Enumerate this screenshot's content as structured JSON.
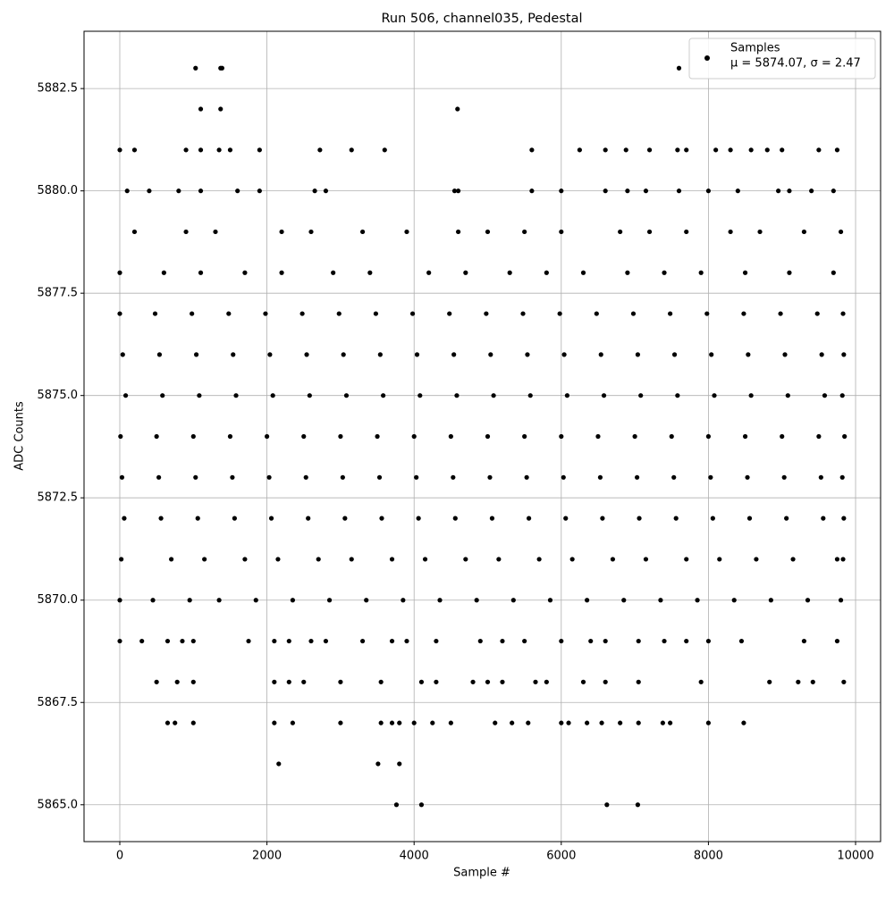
{
  "chart_data": {
    "type": "scatter",
    "title": "Run 506, channel035, Pedestal",
    "xlabel": "Sample #",
    "ylabel": "ADC Counts",
    "xlim": [
      -486,
      10340
    ],
    "ylim": [
      5864.1,
      5883.9
    ],
    "xticks": [
      0,
      2000,
      4000,
      6000,
      8000,
      10000
    ],
    "yticks": [
      {
        "value": 5865,
        "label": "5865.0"
      },
      5867.5,
      {
        "value": 5870,
        "label": "5870.0"
      },
      5872.5,
      {
        "value": 5875,
        "label": "5875.0"
      },
      5877.5,
      {
        "value": 5880,
        "label": "5880.0"
      },
      5882.5
    ],
    "grid": true,
    "legend": "upper right",
    "annotation": "μ = 5874.07, σ = 2.47",
    "series": [
      {
        "name": "Samples",
        "color": "#000000",
        "x": [
          0,
          480,
          980,
          1480,
          1980,
          2480,
          2980,
          3480,
          3980,
          4480,
          4980,
          5480,
          5980,
          6480,
          6980,
          7480,
          7980,
          8480,
          8980,
          9480,
          9830,
          40,
          540,
          1040,
          1540,
          2040,
          2540,
          3040,
          3540,
          4040,
          4540,
          5040,
          5540,
          6040,
          6540,
          7040,
          7540,
          8040,
          8540,
          9040,
          9540,
          9840,
          80,
          580,
          1080,
          1580,
          2080,
          2580,
          3080,
          3580,
          4080,
          4580,
          5080,
          5580,
          6080,
          6580,
          7080,
          7580,
          8080,
          8580,
          9080,
          9580,
          9820,
          10,
          500,
          1000,
          1500,
          2000,
          2500,
          3000,
          3500,
          4000,
          4500,
          5000,
          5500,
          6000,
          6500,
          7000,
          7500,
          8000,
          8500,
          9000,
          9500,
          9850,
          30,
          530,
          1030,
          1530,
          2030,
          2530,
          3030,
          3530,
          4030,
          4530,
          5030,
          5530,
          6030,
          6530,
          7030,
          7530,
          8030,
          8530,
          9030,
          9530,
          9820,
          60,
          560,
          1060,
          1560,
          2060,
          2560,
          3060,
          3560,
          4060,
          4560,
          5060,
          5560,
          6060,
          6560,
          7060,
          7560,
          8060,
          8560,
          9060,
          9560,
          9840,
          20,
          700,
          1150,
          1700,
          2150,
          2700,
          3150,
          3700,
          4150,
          4700,
          5150,
          5700,
          6150,
          6700,
          7150,
          7700,
          8150,
          8650,
          9150,
          9750,
          9830,
          0,
          450,
          950,
          1350,
          1850,
          2350,
          2850,
          3350,
          3850,
          4350,
          4850,
          5350,
          5850,
          6350,
          6850,
          7350,
          7850,
          8350,
          8850,
          9350,
          9800,
          0,
          600,
          1100,
          1700,
          2200,
          2900,
          3400,
          4200,
          4700,
          5300,
          5800,
          6300,
          6900,
          7400,
          7900,
          8500,
          9100,
          9700,
          200,
          900,
          1300,
          2200,
          2600,
          3300,
          3900,
          4600,
          5000,
          5500,
          6000,
          6800,
          7200,
          7700,
          8300,
          8700,
          9300,
          9800,
          100,
          400,
          800,
          1100,
          1600,
          1900,
          2650,
          2800,
          4550,
          4600,
          5600,
          6000,
          6600,
          6900,
          7150,
          7600,
          8000,
          8400,
          8950,
          9100,
          9400,
          9700,
          0,
          200,
          900,
          1100,
          1350,
          1500,
          1900,
          2720,
          3150,
          3600,
          5600,
          6250,
          6600,
          6880,
          7200,
          7580,
          7700,
          8100,
          8300,
          8580,
          8800,
          9000,
          9500,
          9750,
          0,
          300,
          650,
          850,
          1000,
          1750,
          2100,
          2300,
          2600,
          2800,
          3300,
          3700,
          3900,
          4300,
          4900,
          5200,
          5500,
          6000,
          6400,
          6600,
          7050,
          7400,
          7700,
          8000,
          8450,
          9300,
          9750,
          500,
          780,
          1000,
          2100,
          2300,
          2500,
          3000,
          3550,
          4100,
          4300,
          4800,
          5000,
          5200,
          5650,
          5800,
          6300,
          6600,
          7050,
          7900,
          8830,
          9220,
          9420,
          9840,
          650,
          750,
          1000,
          2100,
          2350,
          3000,
          3550,
          3700,
          3800,
          4000,
          4250,
          4500,
          5100,
          5330,
          5550,
          6000,
          6100,
          6350,
          6550,
          6800,
          7050,
          7380,
          7480,
          8000,
          8480,
          1030,
          1370,
          1390,
          7600,
          1100,
          1370,
          4590,
          2160,
          3510,
          3800,
          3760,
          4100,
          6620,
          7040
        ],
        "y": [
          5877,
          5877,
          5877,
          5877,
          5877,
          5877,
          5877,
          5877,
          5877,
          5877,
          5877,
          5877,
          5877,
          5877,
          5877,
          5877,
          5877,
          5877,
          5877,
          5877,
          5877,
          5876,
          5876,
          5876,
          5876,
          5876,
          5876,
          5876,
          5876,
          5876,
          5876,
          5876,
          5876,
          5876,
          5876,
          5876,
          5876,
          5876,
          5876,
          5876,
          5876,
          5876,
          5875,
          5875,
          5875,
          5875,
          5875,
          5875,
          5875,
          5875,
          5875,
          5875,
          5875,
          5875,
          5875,
          5875,
          5875,
          5875,
          5875,
          5875,
          5875,
          5875,
          5875,
          5874,
          5874,
          5874,
          5874,
          5874,
          5874,
          5874,
          5874,
          5874,
          5874,
          5874,
          5874,
          5874,
          5874,
          5874,
          5874,
          5874,
          5874,
          5874,
          5874,
          5874,
          5873,
          5873,
          5873,
          5873,
          5873,
          5873,
          5873,
          5873,
          5873,
          5873,
          5873,
          5873,
          5873,
          5873,
          5873,
          5873,
          5873,
          5873,
          5873,
          5873,
          5873,
          5872,
          5872,
          5872,
          5872,
          5872,
          5872,
          5872,
          5872,
          5872,
          5872,
          5872,
          5872,
          5872,
          5872,
          5872,
          5872,
          5872,
          5872,
          5872,
          5872,
          5872,
          5871,
          5871,
          5871,
          5871,
          5871,
          5871,
          5871,
          5871,
          5871,
          5871,
          5871,
          5871,
          5871,
          5871,
          5871,
          5871,
          5871,
          5871,
          5871,
          5871,
          5871,
          5870,
          5870,
          5870,
          5870,
          5870,
          5870,
          5870,
          5870,
          5870,
          5870,
          5870,
          5870,
          5870,
          5870,
          5870,
          5870,
          5870,
          5870,
          5870,
          5870,
          5870,
          5878,
          5878,
          5878,
          5878,
          5878,
          5878,
          5878,
          5878,
          5878,
          5878,
          5878,
          5878,
          5878,
          5878,
          5878,
          5878,
          5878,
          5878,
          5879,
          5879,
          5879,
          5879,
          5879,
          5879,
          5879,
          5879,
          5879,
          5879,
          5879,
          5879,
          5879,
          5879,
          5879,
          5879,
          5879,
          5879,
          5880,
          5880,
          5880,
          5880,
          5880,
          5880,
          5880,
          5880,
          5880,
          5880,
          5880,
          5880,
          5880,
          5880,
          5880,
          5880,
          5880,
          5880,
          5880,
          5880,
          5880,
          5880,
          5881,
          5881,
          5881,
          5881,
          5881,
          5881,
          5881,
          5881,
          5881,
          5881,
          5881,
          5881,
          5881,
          5881,
          5881,
          5881,
          5881,
          5881,
          5881,
          5881,
          5881,
          5881,
          5881,
          5881,
          5869,
          5869,
          5869,
          5869,
          5869,
          5869,
          5869,
          5869,
          5869,
          5869,
          5869,
          5869,
          5869,
          5869,
          5869,
          5869,
          5869,
          5869,
          5869,
          5869,
          5869,
          5869,
          5869,
          5869,
          5869,
          5869,
          5869,
          5868,
          5868,
          5868,
          5868,
          5868,
          5868,
          5868,
          5868,
          5868,
          5868,
          5868,
          5868,
          5868,
          5868,
          5868,
          5868,
          5868,
          5868,
          5868,
          5868,
          5868,
          5868,
          5868,
          5867,
          5867,
          5867,
          5867,
          5867,
          5867,
          5867,
          5867,
          5867,
          5867,
          5867,
          5867,
          5867,
          5867,
          5867,
          5867,
          5867,
          5867,
          5867,
          5867,
          5867,
          5867,
          5867,
          5867,
          5867,
          5883,
          5883,
          5883,
          5883,
          5882,
          5882,
          5882,
          5866,
          5866,
          5866,
          5865,
          5865,
          5865,
          5865
        ]
      }
    ]
  }
}
